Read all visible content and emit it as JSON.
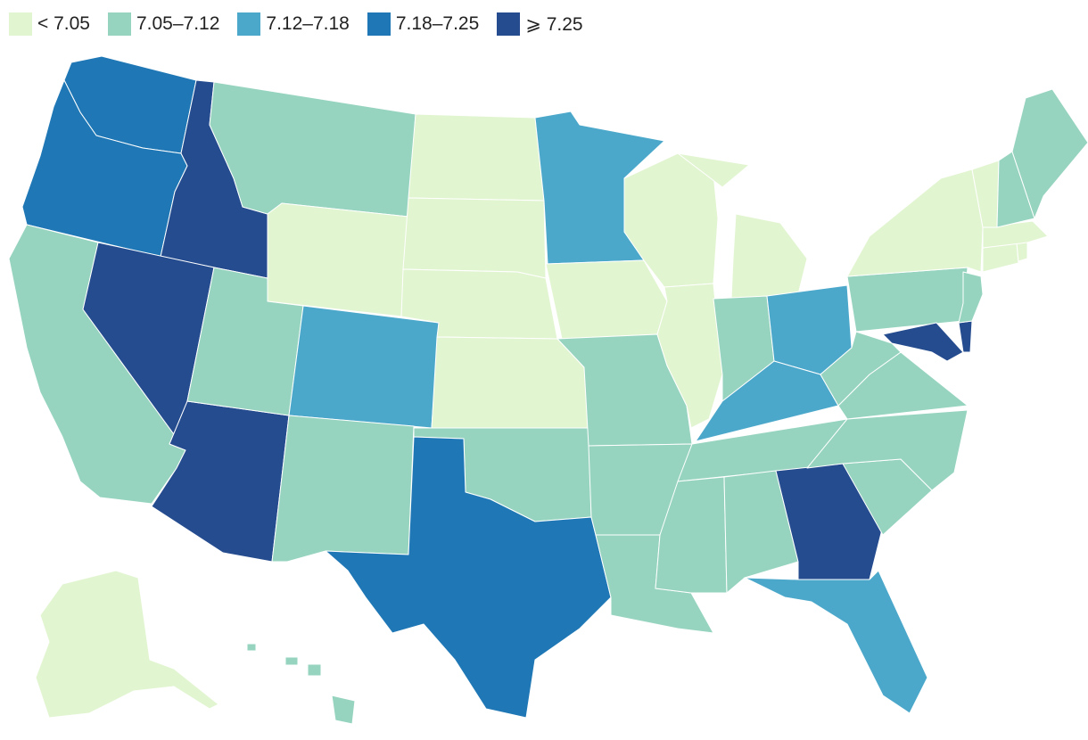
{
  "legend": {
    "items": [
      {
        "label": "< 7.05",
        "color": "#e2f5d1"
      },
      {
        "label": "7.05–7.12",
        "color": "#96d4bf"
      },
      {
        "label": "7.12–7.18",
        "color": "#4ca8cb"
      },
      {
        "label": "7.18–7.25",
        "color": "#1f78b5"
      },
      {
        "label": "⩾ 7.25",
        "color": "#254c8f"
      }
    ]
  },
  "bin_colors": [
    "#e2f5d1",
    "#96d4bf",
    "#4ca8cb",
    "#1f78b5",
    "#254c8f"
  ],
  "states": [
    {
      "name": "washington",
      "bin": 3
    },
    {
      "name": "oregon",
      "bin": 3
    },
    {
      "name": "california",
      "bin": 1
    },
    {
      "name": "idaho",
      "bin": 4
    },
    {
      "name": "nevada",
      "bin": 4
    },
    {
      "name": "arizona",
      "bin": 4
    },
    {
      "name": "montana",
      "bin": 1
    },
    {
      "name": "wyoming",
      "bin": 0
    },
    {
      "name": "utah",
      "bin": 1
    },
    {
      "name": "colorado",
      "bin": 2
    },
    {
      "name": "new-mexico",
      "bin": 1
    },
    {
      "name": "north-dakota",
      "bin": 0
    },
    {
      "name": "south-dakota",
      "bin": 0
    },
    {
      "name": "nebraska",
      "bin": 0
    },
    {
      "name": "kansas",
      "bin": 0
    },
    {
      "name": "oklahoma",
      "bin": 1
    },
    {
      "name": "texas",
      "bin": 3
    },
    {
      "name": "minnesota",
      "bin": 2
    },
    {
      "name": "iowa",
      "bin": 0
    },
    {
      "name": "missouri",
      "bin": 1
    },
    {
      "name": "arkansas",
      "bin": 1
    },
    {
      "name": "louisiana",
      "bin": 1
    },
    {
      "name": "wisconsin",
      "bin": 0
    },
    {
      "name": "illinois",
      "bin": 0
    },
    {
      "name": "michigan",
      "bin": 0
    },
    {
      "name": "indiana",
      "bin": 1
    },
    {
      "name": "ohio",
      "bin": 2
    },
    {
      "name": "kentucky",
      "bin": 2
    },
    {
      "name": "tennessee",
      "bin": 1
    },
    {
      "name": "mississippi",
      "bin": 1
    },
    {
      "name": "alabama",
      "bin": 1
    },
    {
      "name": "georgia",
      "bin": 4
    },
    {
      "name": "florida",
      "bin": 2
    },
    {
      "name": "south-carolina",
      "bin": 1
    },
    {
      "name": "north-carolina",
      "bin": 1
    },
    {
      "name": "virginia",
      "bin": 1
    },
    {
      "name": "west-virginia",
      "bin": 1
    },
    {
      "name": "maryland",
      "bin": 4
    },
    {
      "name": "delaware",
      "bin": 4
    },
    {
      "name": "pennsylvania",
      "bin": 1
    },
    {
      "name": "new-jersey",
      "bin": 1
    },
    {
      "name": "new-york",
      "bin": 0
    },
    {
      "name": "connecticut",
      "bin": 0
    },
    {
      "name": "rhode-island",
      "bin": 0
    },
    {
      "name": "massachusetts",
      "bin": 0
    },
    {
      "name": "vermont",
      "bin": 0
    },
    {
      "name": "new-hampshire",
      "bin": 1
    },
    {
      "name": "maine",
      "bin": 1
    },
    {
      "name": "alaska",
      "bin": 0
    },
    {
      "name": "hawaii",
      "bin": 1
    }
  ]
}
